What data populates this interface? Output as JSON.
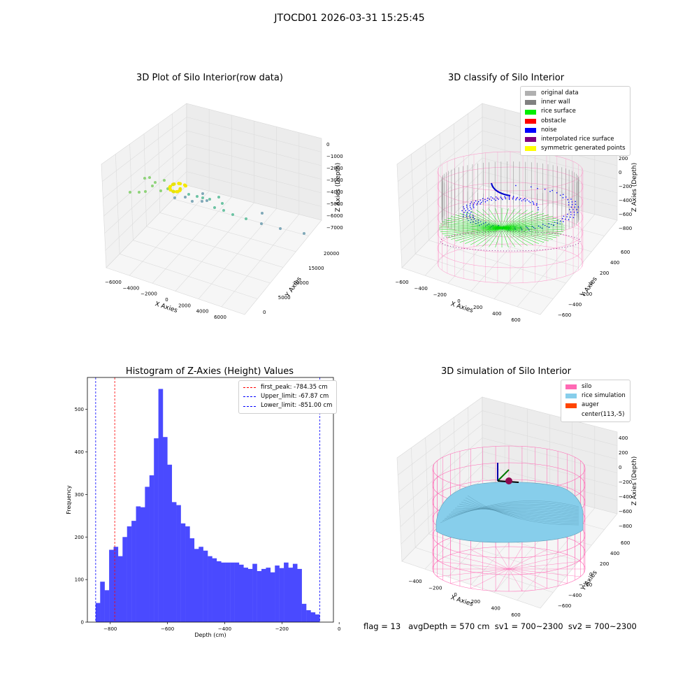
{
  "page_title": "JTOCD01 2026-03-31 15:25:45",
  "status_line": "flag = 13   avgDepth = 570 cm  sv1 = 700~2300  sv2 = 700~2300",
  "colors": {
    "histogram": "#4a4aff",
    "red_line": "#ff0000",
    "blue_line": "#0000ff",
    "silo": "#ff69b4",
    "rice_sim": "#87ceeb",
    "auger": "#ff4500",
    "original": "#b0b0b0",
    "inner_wall": "#808080",
    "rice_surface": "#00ee00",
    "obstacle": "#ff0000",
    "noise": "#0000ff",
    "interpolated": "#800080",
    "symmetric": "#ffff00"
  },
  "chart_data": [
    {
      "type": "scatter",
      "title": "3D Plot of Silo Interior(row data)",
      "xlabel": "X Axies",
      "ylabel": "Y Axies",
      "zlabel": "Z Axies (Depth)",
      "xticks": [
        "−6000",
        "−4000",
        "−2000",
        "0",
        "2000",
        "4000",
        "6000"
      ],
      "yticks": [
        "0",
        "5000",
        "10000",
        "15000",
        "20000"
      ],
      "zticks": [
        "0",
        "−1000",
        "−2000",
        "−3000",
        "−4000",
        "−5000",
        "−6000",
        "−7000"
      ]
    },
    {
      "type": "scatter",
      "title": "3D classify of Silo Interior",
      "xlabel": "X Axies",
      "ylabel": "Y Axies",
      "zlabel": "Z Axies (Depth)",
      "xticks": [
        "−600",
        "−400",
        "−200",
        "0",
        "200",
        "400",
        "600"
      ],
      "yticks": [
        "−600",
        "−400",
        "−200",
        "0",
        "200",
        "400",
        "600"
      ],
      "zticks": [
        "200",
        "0",
        "−200",
        "−400",
        "−600",
        "−800"
      ],
      "legend": [
        {
          "label": "original data",
          "color": "#b0b0b0"
        },
        {
          "label": "inner wall",
          "color": "#808080"
        },
        {
          "label": "rice surface",
          "color": "#00ee00"
        },
        {
          "label": "obstacle",
          "color": "#ff0000"
        },
        {
          "label": "noise",
          "color": "#0000ff"
        },
        {
          "label": "interpolated rice surface",
          "color": "#800080"
        },
        {
          "label": "symmetric generated points",
          "color": "#ffff00"
        }
      ]
    },
    {
      "type": "bar",
      "title": "Histogram of Z-Axies (Height) Values",
      "xlabel": "Depth (cm)",
      "ylabel": "Frequency",
      "xlim": [
        -880,
        -20
      ],
      "ylim": [
        0,
        575
      ],
      "xticks": [
        -800,
        -600,
        -400,
        -200,
        0
      ],
      "xtick_labels": [
        "−800",
        "−600",
        "−400",
        "−200",
        "0"
      ],
      "yticks": [
        0,
        100,
        200,
        300,
        400,
        500
      ],
      "bin_start": -851,
      "bin_width": 15.66,
      "values": [
        45,
        95,
        75,
        170,
        177,
        155,
        200,
        225,
        238,
        272,
        270,
        318,
        345,
        432,
        548,
        435,
        370,
        282,
        275,
        232,
        225,
        197,
        172,
        177,
        168,
        155,
        150,
        143,
        140,
        140,
        140,
        140,
        135,
        128,
        125,
        137,
        120,
        125,
        128,
        117,
        133,
        127,
        140,
        128,
        137,
        125,
        43,
        28,
        23,
        18
      ],
      "legend": [
        {
          "label": "first_peak: -784.35 cm",
          "color": "#ff0000"
        },
        {
          "label": "Upper_limit: -67.87 cm",
          "color": "#0000ff"
        },
        {
          "label": "Lower_limit: -851.00 cm",
          "color": "#0000ff"
        }
      ],
      "vlines": [
        {
          "x": -784.35,
          "color": "#ff0000"
        },
        {
          "x": -67.87,
          "color": "#0000ff"
        },
        {
          "x": -851.0,
          "color": "#0000ff"
        }
      ]
    },
    {
      "type": "area",
      "title": "3D simulation of Silo Interior",
      "xlabel": "X Axies",
      "ylabel": "Y Axies",
      "zlabel": "Z Axies (Depth)",
      "xticks": [
        "−400",
        "−200",
        "0",
        "200",
        "400",
        "600"
      ],
      "yticks": [
        "−600",
        "−400",
        "−200",
        "0",
        "200",
        "400",
        "600"
      ],
      "zticks": [
        "400",
        "200",
        "0",
        "−200",
        "−400",
        "−600",
        "−800"
      ],
      "legend": [
        {
          "label": "silo",
          "color": "#ff69b4"
        },
        {
          "label": "rice simulation",
          "color": "#87ceeb"
        },
        {
          "label": "auger",
          "color": "#ff4500"
        },
        {
          "label": "center(113,-5)",
          "color": ""
        }
      ]
    }
  ]
}
